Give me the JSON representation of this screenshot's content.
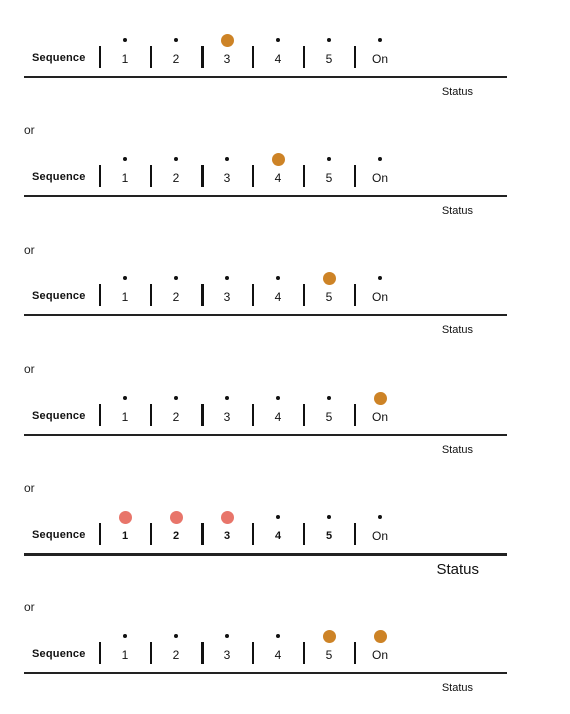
{
  "sequence_label": "Sequence",
  "status_label": "Status",
  "or_label": "or",
  "steps": [
    "1",
    "2",
    "3",
    "4",
    "5",
    "On"
  ],
  "colors": {
    "orange": "#cd8326",
    "pink": "#e8756a",
    "ink": "#111111"
  },
  "panels": [
    {
      "highlighted": [
        3
      ],
      "color": "orange"
    },
    {
      "highlighted": [
        4
      ],
      "color": "orange"
    },
    {
      "highlighted": [
        5
      ],
      "color": "orange"
    },
    {
      "highlighted": [
        6
      ],
      "color": "orange"
    },
    {
      "highlighted": [
        1,
        2,
        3
      ],
      "color": "pink",
      "emphasis": true
    },
    {
      "highlighted": [
        5,
        6
      ],
      "color": "orange"
    }
  ]
}
